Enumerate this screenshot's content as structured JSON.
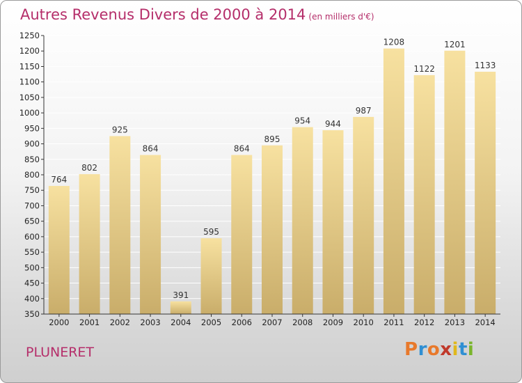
{
  "header": {
    "title": "Autres Revenus Divers de 2000 à 2014",
    "unit": "(en milliers d'€)"
  },
  "footer": {
    "commune": "PLUNERET",
    "logo_text": "Proxiti",
    "logo_colors": [
      "#e8792b",
      "#2f8fd3",
      "#e8792b",
      "#c0392b",
      "#e0b81c",
      "#2f8fd3",
      "#7ab52c"
    ]
  },
  "colors": {
    "title": "#b52e6a",
    "bar_light": "#f7e1a0",
    "bar_dark": "#c9ad6a",
    "grid": "#ffffff",
    "axis": "#333333"
  },
  "chart_data": {
    "type": "bar",
    "title": "Autres Revenus Divers de 2000 à 2014",
    "subtitle": "(en milliers d'€)",
    "xlabel": "",
    "ylabel": "",
    "categories": [
      "2000",
      "2001",
      "2002",
      "2003",
      "2004",
      "2005",
      "2006",
      "2007",
      "2008",
      "2009",
      "2010",
      "2011",
      "2012",
      "2013",
      "2014"
    ],
    "values": [
      764,
      802,
      925,
      864,
      391,
      595,
      864,
      895,
      954,
      944,
      987,
      1208,
      1122,
      1201,
      1133
    ],
    "ylim": [
      350,
      1250
    ],
    "yticks": [
      350,
      400,
      450,
      500,
      550,
      600,
      650,
      700,
      750,
      800,
      850,
      900,
      950,
      1000,
      1050,
      1100,
      1150,
      1200,
      1250
    ],
    "grid": true,
    "data_labels": true
  }
}
